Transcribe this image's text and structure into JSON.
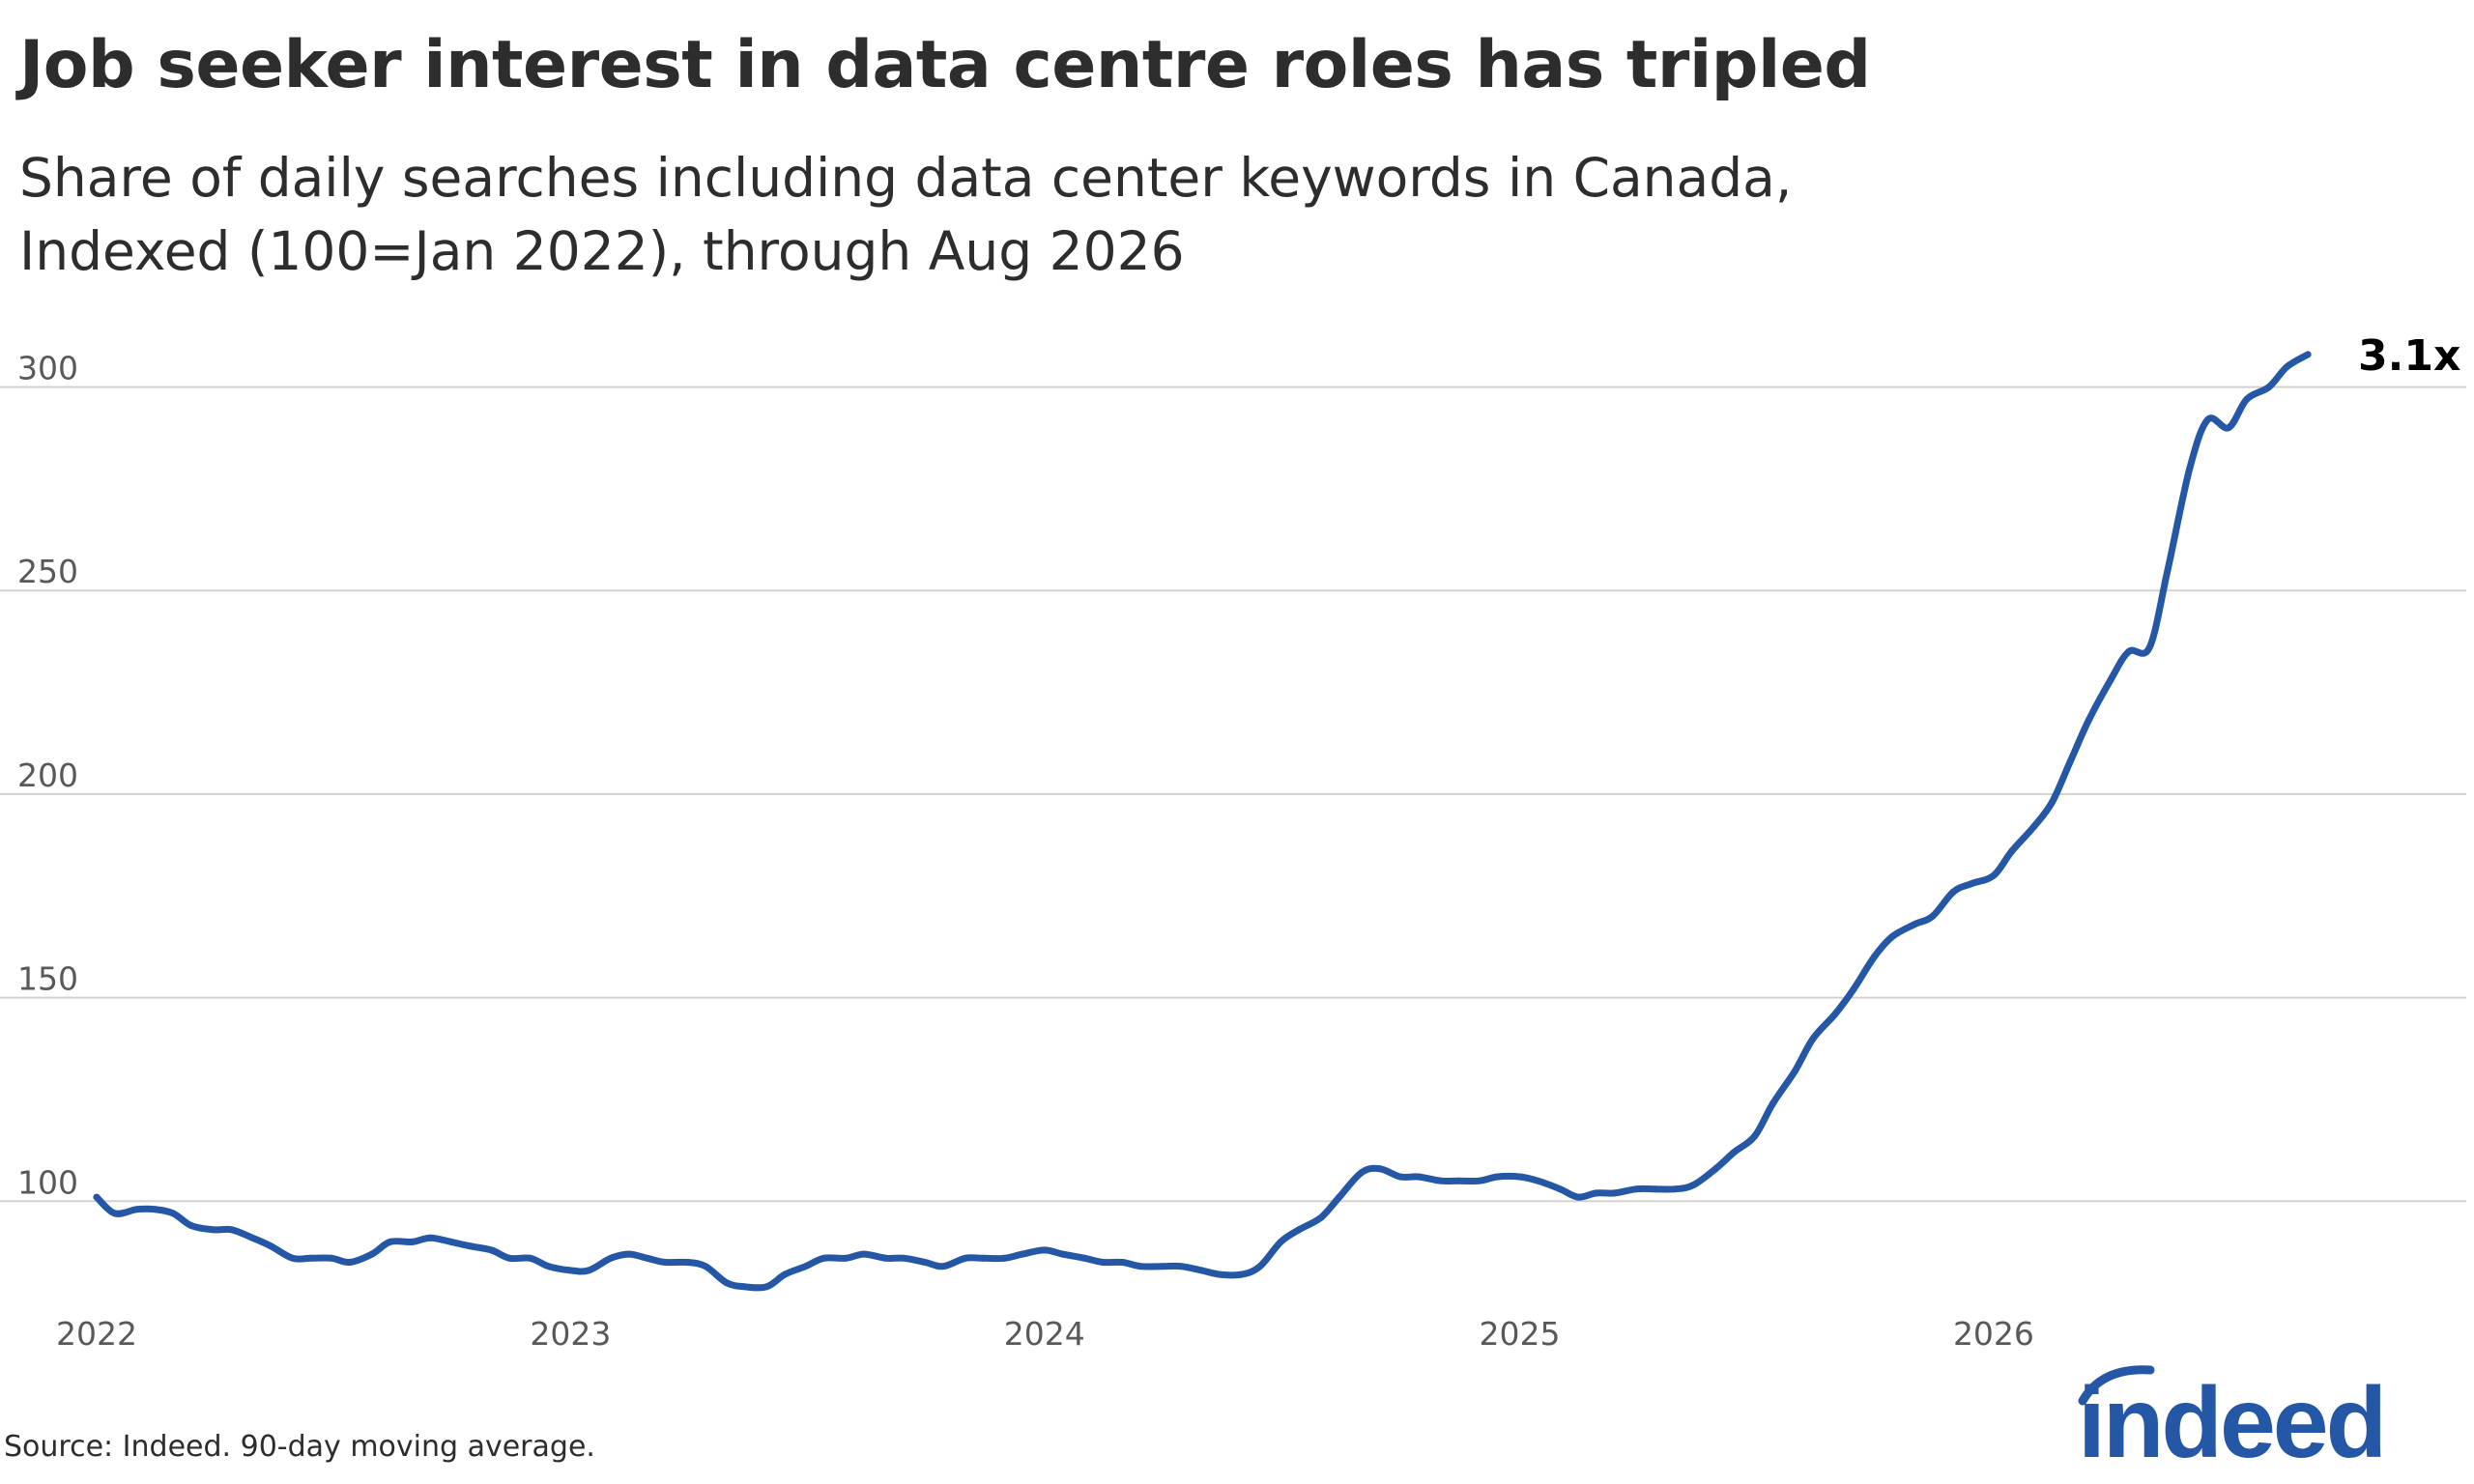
{
  "header": {
    "title": "Job seeker interest in data centre roles has tripled",
    "subtitle_line1": "Share of daily searches including data center keywords in Canada,",
    "subtitle_line2": "Indexed (100=Jan 2022), through Aug 2026"
  },
  "footer": {
    "source": "Source: Indeed. 90-day moving average.",
    "logo_text": "indeed"
  },
  "colors": {
    "line": "#2557a7",
    "grid": "#d4d2d0",
    "text": "#2d2d2d",
    "brand": "#2557a7"
  },
  "chart_data": {
    "type": "line",
    "title": "Job seeker interest in data centre roles has tripled",
    "xlabel": "",
    "ylabel": "",
    "ylim": [
      78,
      312
    ],
    "xlim": [
      "2022-01-01",
      "2026-12-31"
    ],
    "y_ticks": [
      100,
      150,
      200,
      250,
      300
    ],
    "x_ticks": [
      "2022",
      "2023",
      "2024",
      "2025",
      "2026"
    ],
    "grid": "horizontal",
    "annotation": {
      "text": "3.1x",
      "x": "2026-08-31",
      "y": 308
    },
    "series": [
      {
        "x": [
          "2022-01-01",
          "2022-01-15",
          "2022-02-01",
          "2022-02-15",
          "2022-03-01",
          "2022-03-15",
          "2022-04-01",
          "2022-04-15",
          "2022-05-01",
          "2022-05-15",
          "2022-06-01",
          "2022-06-15",
          "2022-07-01",
          "2022-07-15",
          "2022-08-01",
          "2022-08-15",
          "2022-09-01",
          "2022-09-15",
          "2022-10-01",
          "2022-10-15",
          "2022-11-01",
          "2022-11-15",
          "2022-12-01",
          "2022-12-15",
          "2023-01-01",
          "2023-01-15",
          "2023-02-01",
          "2023-02-15",
          "2023-03-01",
          "2023-03-15",
          "2023-04-01",
          "2023-04-15",
          "2023-05-01",
          "2023-05-15",
          "2023-06-01",
          "2023-06-15",
          "2023-07-01",
          "2023-07-15",
          "2023-08-01",
          "2023-08-15",
          "2023-09-01",
          "2023-09-15",
          "2023-10-01",
          "2023-10-15",
          "2023-11-01",
          "2023-11-15",
          "2023-12-01",
          "2023-12-15",
          "2024-01-01",
          "2024-01-15",
          "2024-02-01",
          "2024-02-15",
          "2024-03-01",
          "2024-03-15",
          "2024-04-01",
          "2024-04-15",
          "2024-05-01",
          "2024-05-15",
          "2024-06-01",
          "2024-06-15",
          "2024-07-01",
          "2024-07-15",
          "2024-08-01",
          "2024-08-15",
          "2024-09-01",
          "2024-09-15",
          "2024-10-01",
          "2024-10-15",
          "2024-11-01",
          "2024-11-15",
          "2024-12-01",
          "2024-12-15",
          "2025-01-01",
          "2025-01-15",
          "2025-02-01",
          "2025-02-15",
          "2025-03-01",
          "2025-03-15",
          "2025-04-01",
          "2025-04-15",
          "2025-05-01",
          "2025-05-15",
          "2025-06-01",
          "2025-06-15",
          "2025-07-01",
          "2025-07-15",
          "2025-08-01",
          "2025-08-15",
          "2025-09-01",
          "2025-09-15",
          "2025-10-01",
          "2025-10-15",
          "2025-11-01",
          "2025-11-15",
          "2025-12-01",
          "2025-12-15",
          "2026-01-01",
          "2026-01-15",
          "2026-02-01",
          "2026-02-15",
          "2026-03-01",
          "2026-03-15",
          "2026-04-01",
          "2026-04-15",
          "2026-05-01",
          "2026-05-15",
          "2026-06-01",
          "2026-06-15",
          "2026-07-01",
          "2026-07-15",
          "2026-08-01",
          "2026-08-15",
          "2026-08-31"
        ],
        "values": [
          101,
          97,
          98,
          98,
          97,
          94,
          93,
          93,
          91,
          89,
          86,
          86,
          86,
          85,
          87,
          90,
          90,
          91,
          90,
          89,
          88,
          86,
          86,
          84,
          83,
          83,
          86,
          87,
          86,
          85,
          85,
          84,
          80,
          79,
          79,
          82,
          84,
          86,
          86,
          87,
          86,
          86,
          85,
          84,
          86,
          86,
          86,
          87,
          88,
          87,
          86,
          85,
          85,
          84,
          84,
          84,
          83,
          82,
          82,
          84,
          90,
          93,
          96,
          101,
          107,
          108,
          106,
          106,
          105,
          105,
          105,
          106,
          106,
          105,
          103,
          101,
          102,
          102,
          103,
          103,
          103,
          104,
          108,
          112,
          116,
          124,
          132,
          140,
          146,
          152,
          160,
          165,
          168,
          170,
          176,
          178,
          180,
          186,
          192,
          198,
          208,
          218,
          228,
          235,
          236,
          255,
          280,
          292,
          290,
          297,
          300,
          305,
          308
        ]
      }
    ]
  }
}
